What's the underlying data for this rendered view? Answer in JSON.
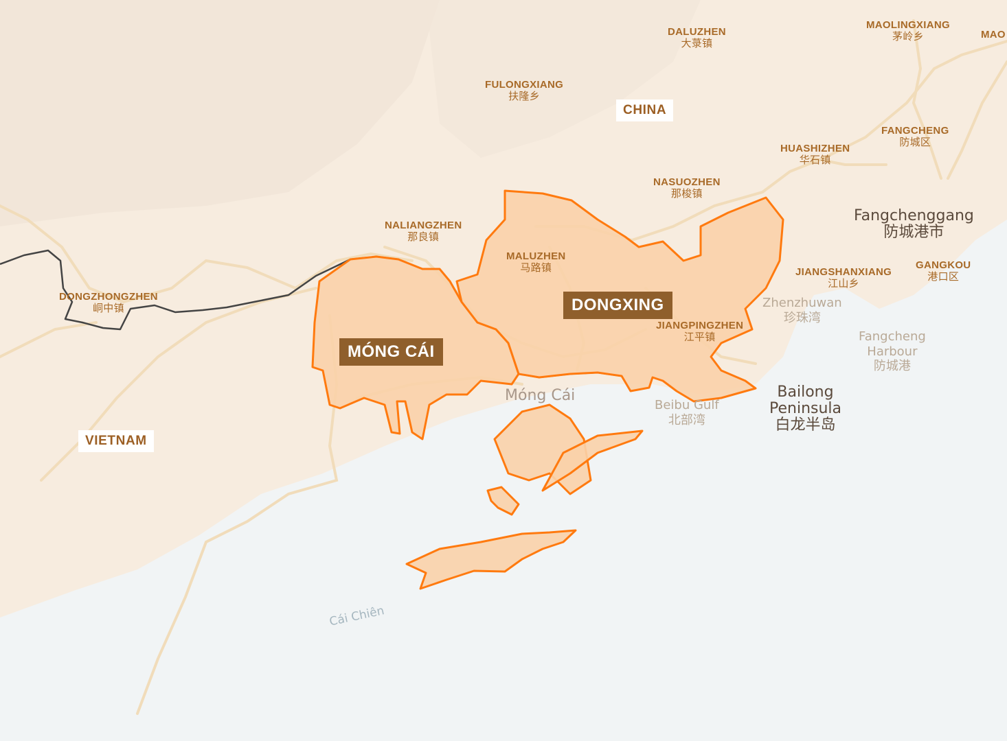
{
  "map": {
    "colors": {
      "land": "#f7ecdf",
      "water": "#f1f4f5",
      "road": "#f1dcba",
      "border": "#444444",
      "highlight_fill": "#f9d2aa",
      "highlight_stroke": "#ff7a0f",
      "region_label_bg": "#8f5f2c",
      "place_text": "#a86a28"
    },
    "countries": [
      {
        "id": "china",
        "name": "CHINA"
      },
      {
        "id": "vietnam",
        "name": "VIETNAM"
      }
    ],
    "regions": [
      {
        "id": "mong-cai",
        "name": "MÓNG CÁI"
      },
      {
        "id": "dongxing",
        "name": "DONGXING"
      }
    ],
    "places": [
      {
        "id": "daluzhen",
        "name": "DALUZHEN",
        "zh": "大菉镇"
      },
      {
        "id": "maolingxiang",
        "name": "MAOLINGXIANG",
        "zh": "茅岭乡"
      },
      {
        "id": "mao-partial",
        "name": "MAO",
        "zh": ""
      },
      {
        "id": "fulongxiang",
        "name": "FULONGXIANG",
        "zh": "扶隆乡"
      },
      {
        "id": "fangcheng",
        "name": "FANGCHENG",
        "zh": "防城区"
      },
      {
        "id": "huashizhen",
        "name": "HUASHIZHEN",
        "zh": "华石镇"
      },
      {
        "id": "nasuozhen",
        "name": "NASUOZHEN",
        "zh": "那梭镇"
      },
      {
        "id": "naliangzhen",
        "name": "NALIANGZHEN",
        "zh": "那良镇"
      },
      {
        "id": "maluzhen",
        "name": "MALUZHEN",
        "zh": "马路镇"
      },
      {
        "id": "gangkou",
        "name": "GANGKOU",
        "zh": "港口区"
      },
      {
        "id": "jiangshanxiang",
        "name": "JIANGSHANXIANG",
        "zh": "江山乡"
      },
      {
        "id": "dongzhongzhen",
        "name": "DONGZHONGZHEN",
        "zh": "峒中镇"
      },
      {
        "id": "jiangpingzhen",
        "name": "JIANGPINGZHEN",
        "zh": "江平镇"
      }
    ],
    "cities": [
      {
        "id": "fangchenggang",
        "name": "Fangchenggang",
        "zh": "防城港市"
      },
      {
        "id": "mong-cai-city",
        "name": "Móng Cái"
      },
      {
        "id": "bailong",
        "line1": "Bailong",
        "line2": "Peninsula",
        "zh": "白龙半岛"
      }
    ],
    "water_labels": [
      {
        "id": "zhenzhuwan",
        "name": "Zhenzhuwan",
        "zh": "珍珠湾"
      },
      {
        "id": "fangcheng-harbour",
        "line1": "Fangcheng",
        "line2": "Harbour",
        "zh": "防城港"
      },
      {
        "id": "beibu-gulf",
        "name": "Beibu Gulf",
        "zh": "北部湾"
      },
      {
        "id": "cai-chien",
        "name": "Cái Chiên"
      }
    ]
  }
}
